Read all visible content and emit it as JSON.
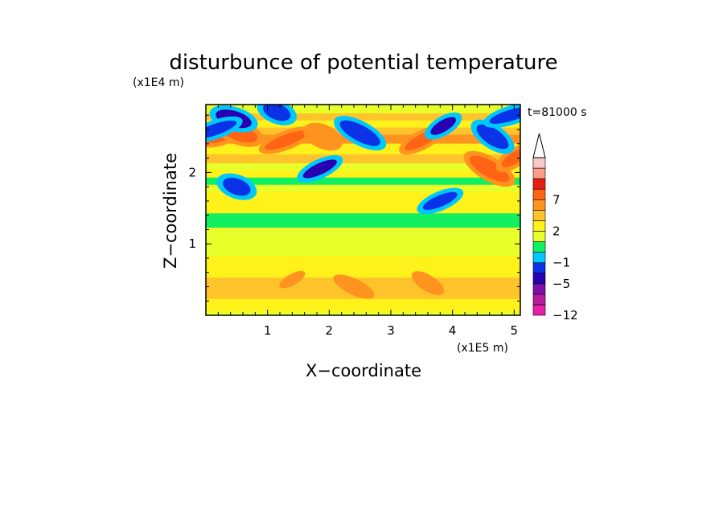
{
  "chart_data": {
    "type": "heatmap",
    "title": "disturbunce of potential temperature",
    "time_label": "t=81000 s",
    "xlabel": "X−coordinate",
    "ylabel": "Z−coordinate",
    "x_scale_label": "(x1E5 m)",
    "y_scale_label": "(x1E4 m)",
    "xlim": [
      0,
      5.1
    ],
    "ylim": [
      0,
      2.95
    ],
    "x_ticks": [
      {
        "value": 1,
        "label": "1"
      },
      {
        "value": 2,
        "label": "2"
      },
      {
        "value": 3,
        "label": "3"
      },
      {
        "value": 4,
        "label": "4"
      },
      {
        "value": 5,
        "label": "5"
      }
    ],
    "y_ticks": [
      {
        "value": 1,
        "label": "1"
      },
      {
        "value": 2,
        "label": "2"
      }
    ],
    "colorbar": {
      "levels": [
        -12,
        -9,
        -7,
        -5,
        -3,
        -1,
        0,
        1,
        2,
        3,
        5,
        7,
        9,
        12
      ],
      "labels": [
        "-12",
        "-5",
        "-1",
        "2",
        "7"
      ],
      "label_text": [
        "−12",
        "−5",
        "−1",
        "2",
        "7"
      ],
      "label_values": [
        -12,
        -5,
        -1,
        2,
        7
      ],
      "extend": "max",
      "colors": [
        "#e81fa8",
        "#b71c9c",
        "#7d0fa8",
        "#2a00b4",
        "#0a32e6",
        "#00c8ff",
        "#12f061",
        "#e8ff2a",
        "#fff21a",
        "#ffc32b",
        "#ff9320",
        "#ff6414",
        "#e61e14",
        "#ff9c8a",
        "#f7c8c8"
      ]
    },
    "bands": [
      {
        "z": 0.03,
        "level": 0.5
      },
      {
        "z": 0.12,
        "level": 1.3
      },
      {
        "z": 0.2,
        "level": 1.6
      },
      {
        "z": 0.3,
        "level": 2.3
      },
      {
        "z": 0.4,
        "level": 2.5
      },
      {
        "z": 0.5,
        "level": 2.2
      },
      {
        "z": 0.6,
        "level": 1.8
      },
      {
        "z": 0.7,
        "level": 1.5
      },
      {
        "z": 0.8,
        "level": 1.2
      },
      {
        "z": 0.9,
        "level": 0.4
      },
      {
        "z": 1.0,
        "level": 0.2
      },
      {
        "z": 1.1,
        "level": 0.1
      },
      {
        "z": 1.2,
        "level": 0.4
      },
      {
        "z": 1.3,
        "level": -0.8
      },
      {
        "z": 1.4,
        "level": -0.5
      },
      {
        "z": 1.5,
        "level": 1.2
      },
      {
        "z": 1.6,
        "level": 1.8
      },
      {
        "z": 1.7,
        "level": 1.0
      },
      {
        "z": 1.8,
        "level": 0.4
      },
      {
        "z": 1.9,
        "level": -0.5
      },
      {
        "z": 2.0,
        "level": 1.5
      },
      {
        "z": 2.1,
        "level": 0.3
      },
      {
        "z": 2.2,
        "level": 2.6
      },
      {
        "z": 2.35,
        "level": 1.8
      },
      {
        "z": 2.5,
        "level": 4.0
      },
      {
        "z": 2.6,
        "level": 2.5
      },
      {
        "z": 2.7,
        "level": 1.0
      },
      {
        "z": 2.8,
        "level": 2.0
      },
      {
        "z": 2.9,
        "level": 0.2
      }
    ],
    "blobs": [
      {
        "x": 0.2,
        "z": 2.5,
        "level": 5.5
      },
      {
        "x": 0.55,
        "z": 2.55,
        "level": 5.0
      },
      {
        "x": 1.3,
        "z": 2.45,
        "level": 5.2
      },
      {
        "x": 1.9,
        "z": 2.5,
        "level": 4.8
      },
      {
        "x": 3.5,
        "z": 2.45,
        "level": 5.0
      },
      {
        "x": 4.6,
        "z": 2.05,
        "level": 5.6
      },
      {
        "x": 5.0,
        "z": 2.2,
        "level": 5.5
      },
      {
        "x": 0.45,
        "z": 2.75,
        "level": -5.5
      },
      {
        "x": 0.15,
        "z": 2.6,
        "level": -5.0
      },
      {
        "x": 1.15,
        "z": 2.85,
        "level": -5.0
      },
      {
        "x": 1.85,
        "z": 2.05,
        "level": -5.5
      },
      {
        "x": 2.5,
        "z": 2.55,
        "level": -5.0
      },
      {
        "x": 3.85,
        "z": 2.65,
        "level": -5.5
      },
      {
        "x": 4.65,
        "z": 2.5,
        "level": -5.0
      },
      {
        "x": 4.95,
        "z": 2.8,
        "level": -5.0
      },
      {
        "x": 0.5,
        "z": 1.8,
        "level": -5.0
      },
      {
        "x": 3.8,
        "z": 1.6,
        "level": -5.0
      },
      {
        "x": 2.4,
        "z": 0.4,
        "level": 3.5
      },
      {
        "x": 1.4,
        "z": 0.5,
        "level": 3.2
      },
      {
        "x": 3.6,
        "z": 0.45,
        "level": 3.3
      }
    ]
  }
}
